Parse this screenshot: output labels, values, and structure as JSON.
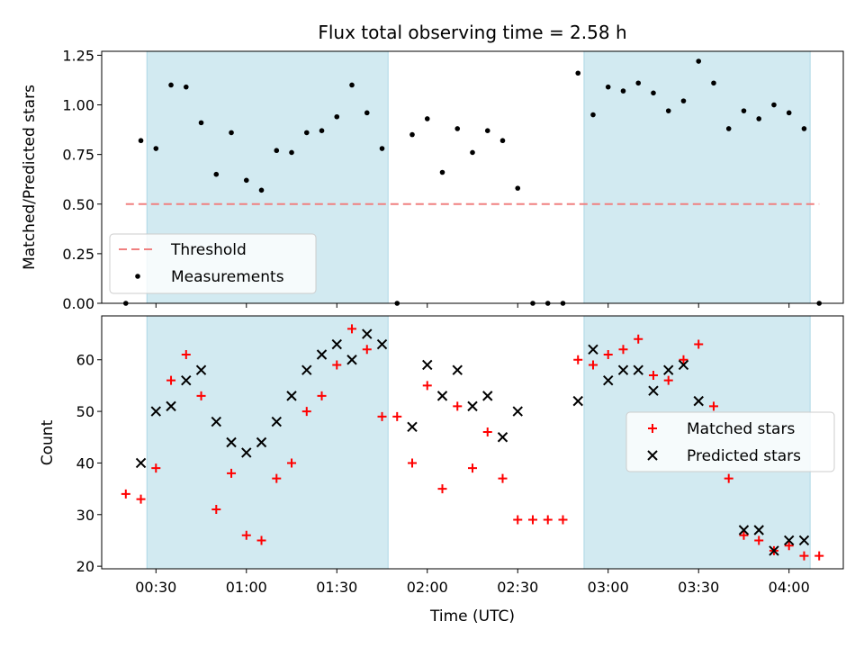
{
  "chart_data": [
    {
      "type": "scatter",
      "title": "Flux total observing time = 2.58 h",
      "xlabel": "",
      "ylabel": "Matched/Predicted stars",
      "ylim": [
        0,
        1.27
      ],
      "yticks": [
        "0.00",
        "0.25",
        "0.50",
        "0.75",
        "1.00",
        "1.25"
      ],
      "threshold": 0.5,
      "shaded_spans": [
        [
          "00:27",
          "01:47"
        ],
        [
          "02:52",
          "04:07"
        ]
      ],
      "legend": {
        "placement": "lower-left",
        "entries": [
          "Threshold",
          "Measurements"
        ]
      },
      "colors": {
        "threshold": "#f08080",
        "measurements": "#000000",
        "shade": "#add8e6"
      },
      "series": [
        {
          "name": "Measurements",
          "x": [
            "00:20",
            "00:25",
            "00:30",
            "00:35",
            "00:40",
            "00:45",
            "00:50",
            "00:55",
            "01:00",
            "01:05",
            "01:10",
            "01:15",
            "01:20",
            "01:25",
            "01:30",
            "01:35",
            "01:40",
            "01:45",
            "01:50",
            "01:55",
            "02:00",
            "02:05",
            "02:10",
            "02:15",
            "02:20",
            "02:25",
            "02:30",
            "02:35",
            "02:40",
            "02:45",
            "02:50",
            "02:55",
            "03:00",
            "03:05",
            "03:10",
            "03:15",
            "03:20",
            "03:25",
            "03:30",
            "03:35",
            "03:40",
            "03:45",
            "03:50",
            "03:55",
            "04:00",
            "04:05",
            "04:10"
          ],
          "values": [
            0.0,
            0.82,
            0.78,
            1.1,
            1.09,
            0.91,
            0.65,
            0.86,
            0.62,
            0.57,
            0.77,
            0.76,
            0.86,
            0.87,
            0.94,
            1.1,
            0.96,
            0.78,
            0.0,
            0.85,
            0.93,
            0.66,
            0.88,
            0.76,
            0.87,
            0.82,
            0.58,
            0.0,
            0.0,
            0.0,
            1.16,
            0.95,
            1.09,
            1.07,
            1.11,
            1.06,
            0.97,
            1.02,
            1.22,
            1.11,
            0.88,
            0.97,
            0.93,
            1.0,
            0.96,
            0.88,
            0.0
          ]
        }
      ]
    },
    {
      "type": "scatter",
      "title": "",
      "xlabel": "Time (UTC)",
      "ylabel": "Count",
      "ylim": [
        19.5,
        68.5
      ],
      "yticks": [
        "20",
        "30",
        "40",
        "50",
        "60"
      ],
      "xticks": [
        "00:30",
        "01:00",
        "01:30",
        "02:00",
        "02:30",
        "03:00",
        "03:30",
        "04:00"
      ],
      "shaded_spans": [
        [
          "00:27",
          "01:47"
        ],
        [
          "02:52",
          "04:07"
        ]
      ],
      "legend": {
        "placement": "center-right",
        "entries": [
          "Matched stars",
          "Predicted stars"
        ]
      },
      "colors": {
        "matched": "#ff0000",
        "predicted": "#000000",
        "shade": "#add8e6"
      },
      "series": [
        {
          "name": "Matched stars",
          "x": [
            "00:20",
            "00:25",
            "00:30",
            "00:35",
            "00:40",
            "00:45",
            "00:50",
            "00:55",
            "01:00",
            "01:05",
            "01:10",
            "01:15",
            "01:20",
            "01:25",
            "01:30",
            "01:35",
            "01:40",
            "01:45",
            "01:50",
            "01:55",
            "02:00",
            "02:05",
            "02:10",
            "02:15",
            "02:20",
            "02:25",
            "02:30",
            "02:35",
            "02:40",
            "02:45",
            "02:50",
            "02:55",
            "03:00",
            "03:05",
            "03:10",
            "03:15",
            "03:20",
            "03:25",
            "03:30",
            "03:35",
            "03:40",
            "03:45",
            "03:50",
            "03:55",
            "04:00",
            "04:05",
            "04:10"
          ],
          "values": [
            34,
            33,
            39,
            56,
            61,
            53,
            31,
            38,
            26,
            25,
            37,
            40,
            50,
            53,
            59,
            66,
            62,
            49,
            49,
            40,
            55,
            35,
            51,
            39,
            46,
            37,
            29,
            29,
            29,
            29,
            60,
            59,
            61,
            62,
            64,
            57,
            56,
            60,
            63,
            51,
            37,
            26,
            25,
            23,
            24,
            22,
            22
          ]
        },
        {
          "name": "Predicted stars",
          "x": [
            "00:25",
            "00:30",
            "00:35",
            "00:40",
            "00:45",
            "00:50",
            "00:55",
            "01:00",
            "01:05",
            "01:10",
            "01:15",
            "01:20",
            "01:25",
            "01:30",
            "01:35",
            "01:40",
            "01:45",
            "01:55",
            "02:00",
            "02:05",
            "02:10",
            "02:15",
            "02:20",
            "02:25",
            "02:30",
            "02:50",
            "02:55",
            "03:00",
            "03:05",
            "03:10",
            "03:15",
            "03:20",
            "03:25",
            "03:30",
            "03:45",
            "03:50",
            "03:55",
            "04:00",
            "04:05"
          ],
          "values": [
            40,
            50,
            51,
            56,
            58,
            48,
            44,
            42,
            44,
            48,
            53,
            58,
            61,
            63,
            60,
            65,
            63,
            47,
            59,
            53,
            58,
            51,
            53,
            45,
            50,
            52,
            62,
            56,
            58,
            58,
            54,
            58,
            59,
            52,
            27,
            27,
            23,
            25,
            25
          ]
        }
      ]
    }
  ]
}
